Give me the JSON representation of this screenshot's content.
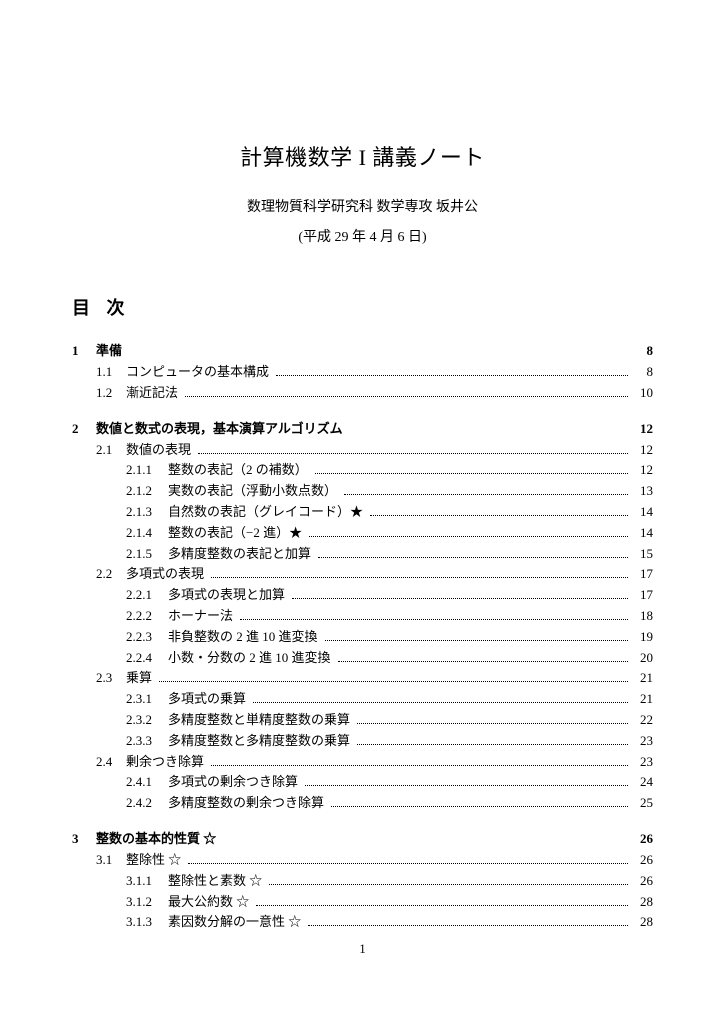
{
  "title": "計算機数学 I 講義ノート",
  "subtitle": "数理物質科学研究科 数学専攻 坂井公",
  "date": "(平成 29 年 4 月 6 日)",
  "toc_heading": "目 次",
  "page_number": "1",
  "chapters": [
    {
      "num": "1",
      "title": "準備",
      "page": "8",
      "sections": [
        {
          "num": "1.1",
          "title": "コンピュータの基本構成",
          "page": "8",
          "subsections": []
        },
        {
          "num": "1.2",
          "title": "漸近記法",
          "page": "10",
          "subsections": []
        }
      ]
    },
    {
      "num": "2",
      "title": "数値と数式の表現，基本演算アルゴリズム",
      "page": "12",
      "sections": [
        {
          "num": "2.1",
          "title": "数値の表現",
          "page": "12",
          "subsections": [
            {
              "num": "2.1.1",
              "title": "整数の表記（2 の補数）",
              "page": "12"
            },
            {
              "num": "2.1.2",
              "title": "実数の表記（浮動小数点数）",
              "page": "13"
            },
            {
              "num": "2.1.3",
              "title": "自然数の表記（グレイコード）★",
              "page": "14"
            },
            {
              "num": "2.1.4",
              "title": "整数の表記（−2 進）★",
              "page": "14"
            },
            {
              "num": "2.1.5",
              "title": "多精度整数の表記と加算",
              "page": "15"
            }
          ]
        },
        {
          "num": "2.2",
          "title": "多項式の表現",
          "page": "17",
          "subsections": [
            {
              "num": "2.2.1",
              "title": "多項式の表現と加算",
              "page": "17"
            },
            {
              "num": "2.2.2",
              "title": "ホーナー法",
              "page": "18"
            },
            {
              "num": "2.2.3",
              "title": "非負整数の 2 進 10 進変換",
              "page": "19"
            },
            {
              "num": "2.2.4",
              "title": "小数・分数の 2 進 10 進変換",
              "page": "20"
            }
          ]
        },
        {
          "num": "2.3",
          "title": "乗算",
          "page": "21",
          "subsections": [
            {
              "num": "2.3.1",
              "title": "多項式の乗算",
              "page": "21"
            },
            {
              "num": "2.3.2",
              "title": "多精度整数と単精度整数の乗算",
              "page": "22"
            },
            {
              "num": "2.3.3",
              "title": "多精度整数と多精度整数の乗算",
              "page": "23"
            }
          ]
        },
        {
          "num": "2.4",
          "title": "剰余つき除算",
          "page": "23",
          "subsections": [
            {
              "num": "2.4.1",
              "title": "多項式の剰余つき除算",
              "page": "24"
            },
            {
              "num": "2.4.2",
              "title": "多精度整数の剰余つき除算",
              "page": "25"
            }
          ]
        }
      ]
    },
    {
      "num": "3",
      "title": "整数の基本的性質 ☆",
      "page": "26",
      "sections": [
        {
          "num": "3.1",
          "title": "整除性 ☆",
          "page": "26",
          "subsections": [
            {
              "num": "3.1.1",
              "title": "整除性と素数 ☆",
              "page": "26"
            },
            {
              "num": "3.1.2",
              "title": "最大公約数 ☆",
              "page": "28"
            },
            {
              "num": "3.1.3",
              "title": "素因数分解の一意性 ☆",
              "page": "28"
            }
          ]
        }
      ]
    }
  ]
}
